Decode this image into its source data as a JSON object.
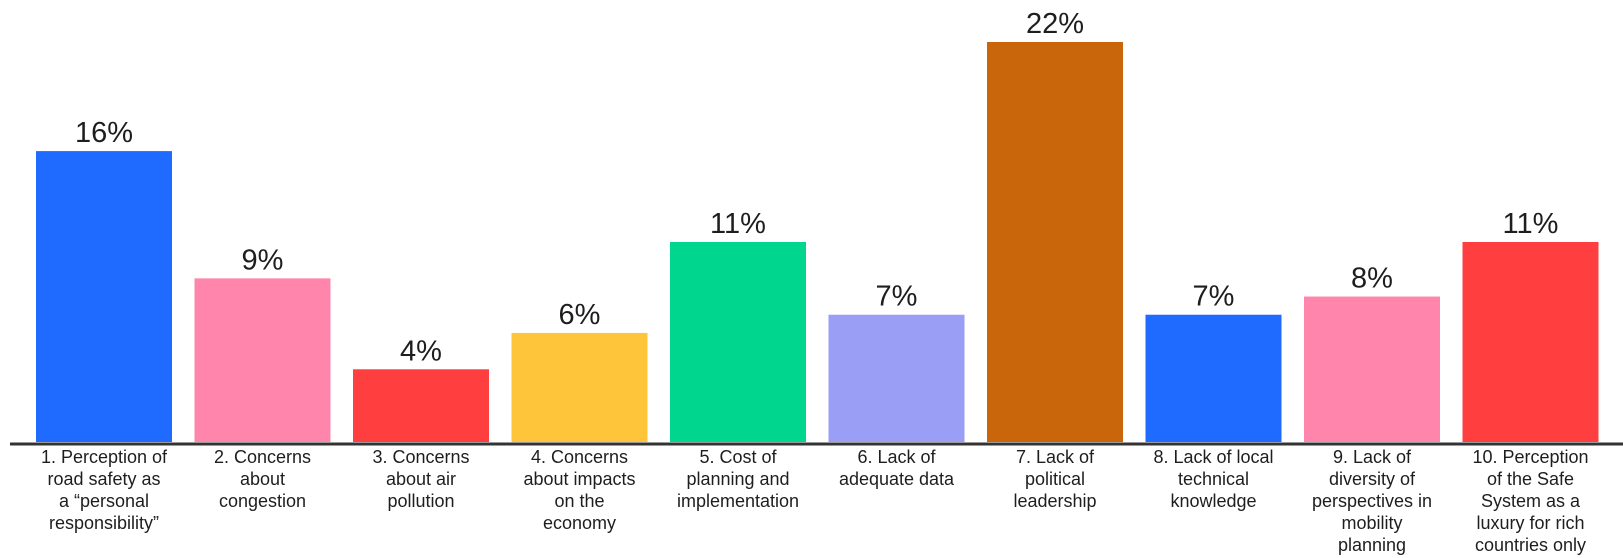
{
  "chart_data": {
    "type": "bar",
    "categories": [
      [
        "1. Perception of",
        "road safety as",
        "a “personal",
        "responsibility”"
      ],
      [
        "2. Concerns",
        "about",
        "congestion"
      ],
      [
        "3. Concerns",
        "about air",
        "pollution"
      ],
      [
        "4. Concerns",
        "about impacts",
        "on the",
        "economy"
      ],
      [
        "5. Cost of",
        "planning and",
        "implementation"
      ],
      [
        "6. Lack of",
        "adequate data"
      ],
      [
        "7. Lack of",
        "political",
        "leadership"
      ],
      [
        "8. Lack of local",
        "technical",
        "knowledge"
      ],
      [
        "9. Lack of",
        "diversity of",
        "perspectives in",
        "mobility",
        "planning"
      ],
      [
        "10. Perception",
        "of the Safe",
        "System as a",
        "luxury for rich",
        "countries only"
      ]
    ],
    "values": [
      16,
      9,
      4,
      6,
      11,
      7,
      22,
      7,
      8,
      11
    ],
    "value_labels": [
      "16%",
      "9%",
      "4%",
      "6%",
      "11%",
      "7%",
      "22%",
      "7%",
      "8%",
      "11%"
    ],
    "colors": [
      "#1f6bff",
      "#ff85ad",
      "#ff3f3f",
      "#fec53b",
      "#00d68d",
      "#9a9ef5",
      "#c9650a",
      "#1f6bff",
      "#ff85ad",
      "#ff3f3f"
    ],
    "axis_color": "#333333",
    "title": "",
    "xlabel": "",
    "ylabel": "",
    "ylim": [
      0,
      22
    ],
    "grid": false,
    "legend": "none"
  }
}
